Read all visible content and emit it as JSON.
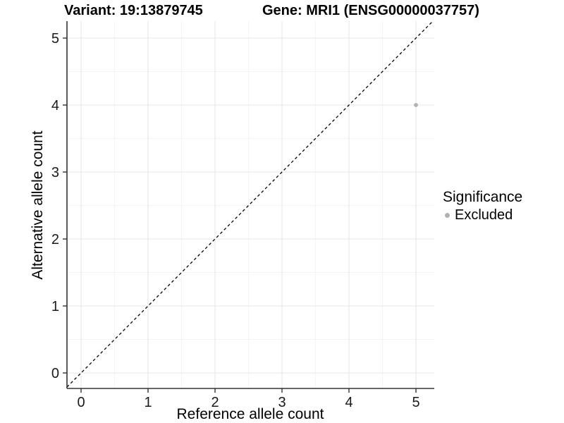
{
  "header": {
    "variant_title": "Variant: 19:13879745",
    "gene_title": "Gene: MRI1 (ENSG00000037757)"
  },
  "legend": {
    "title": "Significance",
    "items": [
      {
        "label": "Excluded",
        "color": "#b1b1b1"
      }
    ]
  },
  "colors": {
    "background": "#ffffff",
    "grid_major": "#e7e7e7",
    "grid_minor": "#f3f3f3",
    "axis_line": "#333333",
    "tick_label": "#1a1a1a",
    "identity_line": "#000000",
    "point": "#b1b1b1"
  },
  "chart_data": {
    "type": "scatter",
    "title": "Variant: 19:13879745   Gene: MRI1 (ENSG00000037757)",
    "xlabel": "Reference allele count",
    "ylabel": "Alternative allele count",
    "x_ticks": [
      0,
      1,
      2,
      3,
      4,
      5
    ],
    "y_ticks": [
      0,
      1,
      2,
      3,
      4,
      5
    ],
    "xlim": [
      -0.25,
      5.25
    ],
    "ylim": [
      -0.25,
      5.25
    ],
    "grid": {
      "major": true,
      "minor": true
    },
    "legend_position": "right",
    "identity_line": {
      "style": "dashed",
      "slope": 1,
      "intercept": 0,
      "color": "#000000"
    },
    "series": [
      {
        "name": "Excluded",
        "color": "#b1b1b1",
        "points": [
          {
            "x": 5,
            "y": 4
          }
        ]
      }
    ]
  }
}
